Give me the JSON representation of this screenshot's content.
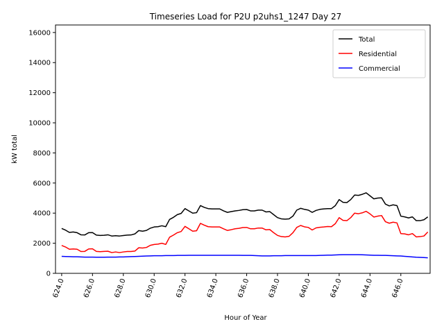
{
  "chart_data": {
    "type": "line",
    "title": "Timeseries Load for P2U p2uhs1_1247  Day 27",
    "xlabel": "Hour of Year",
    "ylabel": "kW total",
    "xlim": [
      623.6,
      647.9
    ],
    "ylim": [
      0,
      16500
    ],
    "xticks": [
      624,
      626,
      628,
      630,
      632,
      634,
      636,
      638,
      640,
      642,
      644,
      646
    ],
    "xtick_labels": [
      "624.0",
      "626.0",
      "628.0",
      "630.0",
      "632.0",
      "634.0",
      "636.0",
      "638.0",
      "640.0",
      "642.0",
      "644.0",
      "646.0"
    ],
    "yticks": [
      0,
      2000,
      4000,
      6000,
      8000,
      10000,
      12000,
      14000,
      16000
    ],
    "ytick_labels": [
      "0",
      "2000",
      "4000",
      "6000",
      "8000",
      "10000",
      "12000",
      "14000",
      "16000"
    ],
    "legend_position": "top-right",
    "x": [
      624.0,
      624.25,
      624.5,
      624.75,
      625.0,
      625.25,
      625.5,
      625.75,
      626.0,
      626.25,
      626.5,
      626.75,
      627.0,
      627.25,
      627.5,
      627.75,
      628.0,
      628.25,
      628.5,
      628.75,
      629.0,
      629.25,
      629.5,
      629.75,
      630.0,
      630.25,
      630.5,
      630.75,
      631.0,
      631.25,
      631.5,
      631.75,
      632.0,
      632.25,
      632.5,
      632.75,
      633.0,
      633.25,
      633.5,
      633.75,
      634.0,
      634.25,
      634.5,
      634.75,
      635.0,
      635.25,
      635.5,
      635.75,
      636.0,
      636.25,
      636.5,
      636.75,
      637.0,
      637.25,
      637.5,
      637.75,
      638.0,
      638.25,
      638.5,
      638.75,
      639.0,
      639.25,
      639.5,
      639.75,
      640.0,
      640.25,
      640.5,
      640.75,
      641.0,
      641.25,
      641.5,
      641.75,
      642.0,
      642.25,
      642.5,
      642.75,
      643.0,
      643.25,
      643.5,
      643.75,
      644.0,
      644.25,
      644.5,
      644.75,
      645.0,
      645.25,
      645.5,
      645.75,
      646.0,
      646.25,
      646.5,
      646.75,
      647.0,
      647.25,
      647.5,
      647.75
    ],
    "series": [
      {
        "name": "Total",
        "color": "#000000",
        "values": [
          2980,
          2870,
          2720,
          2750,
          2700,
          2560,
          2550,
          2700,
          2710,
          2540,
          2520,
          2530,
          2560,
          2480,
          2500,
          2480,
          2510,
          2540,
          2550,
          2620,
          2840,
          2800,
          2850,
          3000,
          3080,
          3100,
          3160,
          3100,
          3580,
          3720,
          3900,
          3980,
          4300,
          4150,
          4000,
          4030,
          4500,
          4380,
          4300,
          4280,
          4280,
          4280,
          4150,
          4050,
          4100,
          4150,
          4180,
          4230,
          4240,
          4150,
          4150,
          4200,
          4200,
          4080,
          4100,
          3900,
          3700,
          3620,
          3600,
          3620,
          3800,
          4200,
          4320,
          4250,
          4200,
          4050,
          4180,
          4250,
          4280,
          4300,
          4300,
          4500,
          4900,
          4720,
          4700,
          4900,
          5200,
          5180,
          5250,
          5350,
          5150,
          4950,
          5000,
          5020,
          4600,
          4480,
          4550,
          4500,
          3800,
          3750,
          3680,
          3750,
          3500,
          3500,
          3560,
          3750
        ]
      },
      {
        "name": "Residential",
        "color": "#ff0000",
        "values": [
          1850,
          1750,
          1600,
          1620,
          1600,
          1450,
          1460,
          1620,
          1630,
          1460,
          1440,
          1460,
          1470,
          1380,
          1420,
          1380,
          1420,
          1450,
          1450,
          1480,
          1700,
          1680,
          1720,
          1860,
          1920,
          1940,
          2000,
          1920,
          2400,
          2540,
          2700,
          2780,
          3120,
          2960,
          2800,
          2830,
          3320,
          3200,
          3100,
          3080,
          3080,
          3080,
          2960,
          2850,
          2900,
          2960,
          2990,
          3040,
          3050,
          2960,
          2960,
          3010,
          3010,
          2890,
          2910,
          2700,
          2520,
          2440,
          2420,
          2460,
          2700,
          3050,
          3180,
          3090,
          3050,
          2880,
          3020,
          3060,
          3080,
          3110,
          3100,
          3300,
          3700,
          3520,
          3500,
          3700,
          4000,
          3960,
          4020,
          4120,
          3950,
          3740,
          3800,
          3840,
          3430,
          3330,
          3400,
          3350,
          2640,
          2620,
          2560,
          2640,
          2420,
          2440,
          2480,
          2750
        ]
      },
      {
        "name": "Commercial",
        "color": "#0000ff",
        "values": [
          1130,
          1120,
          1110,
          1100,
          1100,
          1090,
          1080,
          1080,
          1080,
          1070,
          1070,
          1070,
          1080,
          1080,
          1080,
          1090,
          1090,
          1100,
          1110,
          1120,
          1130,
          1140,
          1150,
          1160,
          1170,
          1170,
          1170,
          1180,
          1180,
          1180,
          1190,
          1190,
          1190,
          1200,
          1200,
          1200,
          1200,
          1200,
          1200,
          1200,
          1200,
          1200,
          1200,
          1200,
          1200,
          1200,
          1200,
          1190,
          1190,
          1190,
          1180,
          1170,
          1160,
          1160,
          1160,
          1170,
          1170,
          1170,
          1180,
          1180,
          1180,
          1180,
          1180,
          1180,
          1180,
          1180,
          1180,
          1190,
          1200,
          1210,
          1210,
          1220,
          1230,
          1240,
          1240,
          1240,
          1240,
          1240,
          1230,
          1220,
          1210,
          1200,
          1200,
          1190,
          1190,
          1180,
          1170,
          1160,
          1150,
          1130,
          1110,
          1090,
          1070,
          1060,
          1050,
          1030
        ]
      }
    ]
  }
}
